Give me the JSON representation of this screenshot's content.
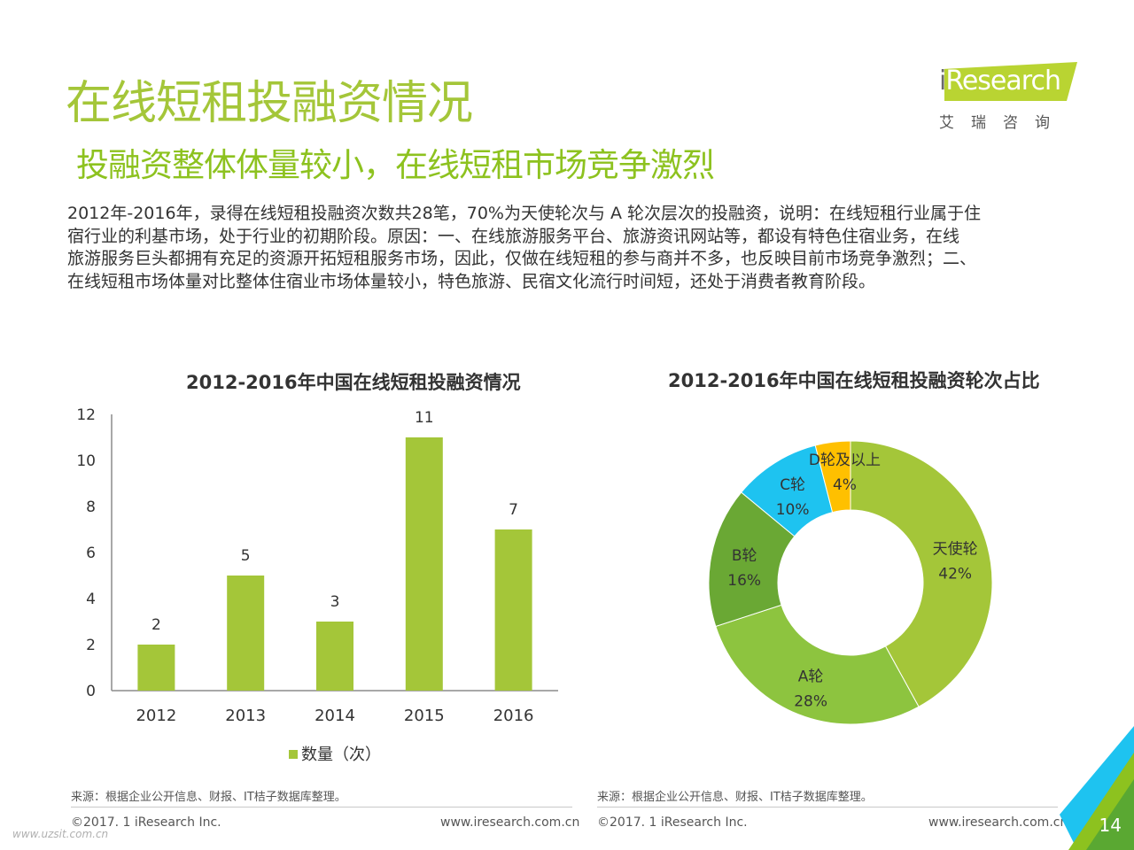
{
  "header": {
    "title": "在线短租投融资情况",
    "subtitle": "投融资整体体量较小，在线短租市场竞争激烈"
  },
  "logo": {
    "i": "i",
    "brand": "Research",
    "cn": "艾瑞咨询"
  },
  "body_lines": [
    "2012年-2016年，录得在线短租投融资次数共28笔，70%为天使轮次与 A 轮次层次的投融资，说明：在线短租行业属于住",
    "宿行业的利基市场，处于行业的初期阶段。原因：一、在线旅游服务平台、旅游资讯网站等，都设有特色住宿业务，在线",
    "旅游服务巨头都拥有充足的资源开拓短租服务市场，因此，仅做在线短租的参与商并不多，也反映目前市场竞争激烈；二、",
    "在线短租市场体量对比整体住宿业市场体量较小，特色旅游、民宿文化流行时间短，还处于消费者教育阶段。"
  ],
  "chart_data": [
    {
      "type": "bar",
      "title": "2012-2016年中国在线短租投融资情况",
      "categories": [
        "2012",
        "2013",
        "2014",
        "2015",
        "2016"
      ],
      "values": [
        2,
        5,
        3,
        11,
        7
      ],
      "value_labels": [
        "2",
        "5",
        "3",
        "11",
        "7"
      ],
      "series_name": "数量（次）",
      "ylim": [
        0,
        12
      ],
      "yticks": [
        "0",
        "2",
        "4",
        "6",
        "8",
        "10",
        "12"
      ],
      "color": "#a4c639",
      "grid": false,
      "legend_position": "bottom"
    },
    {
      "type": "pie",
      "title": "2012-2016年中国在线短租投融资轮次占比",
      "donut": true,
      "slices": [
        {
          "label": "天使轮",
          "pct_label": "42%",
          "value": 42,
          "color": "#a4c639"
        },
        {
          "label": "A轮",
          "pct_label": "28%",
          "value": 28,
          "color": "#8dc43f"
        },
        {
          "label": "B轮",
          "pct_label": "16%",
          "value": 16,
          "color": "#6aa834"
        },
        {
          "label": "C轮",
          "pct_label": "10%",
          "value": 10,
          "color": "#1ec3f0"
        },
        {
          "label": "D轮及以上",
          "pct_label": "4%",
          "value": 4,
          "color": "#ffc000"
        }
      ]
    }
  ],
  "footer": {
    "source_left": "来源：根据企业公开信息、财报、IT桔子数据库整理。",
    "source_right": "来源：根据企业公开信息、财报、IT桔子数据库整理。",
    "copyright_left": "©2017. 1 iResearch Inc.",
    "copyright_right": "©2017. 1 iResearch Inc.",
    "url_left": "www.iresearch.com.cn",
    "url_right": "www.iresearch.com.cn",
    "page_number": "14",
    "watermark": "www.uzsit.com.cn"
  },
  "colors": {
    "title_green": "#a4c639",
    "subtitle_green": "#8dc21f",
    "corner_blue": "#1ec3f0",
    "corner_green": "#8dc21f"
  }
}
